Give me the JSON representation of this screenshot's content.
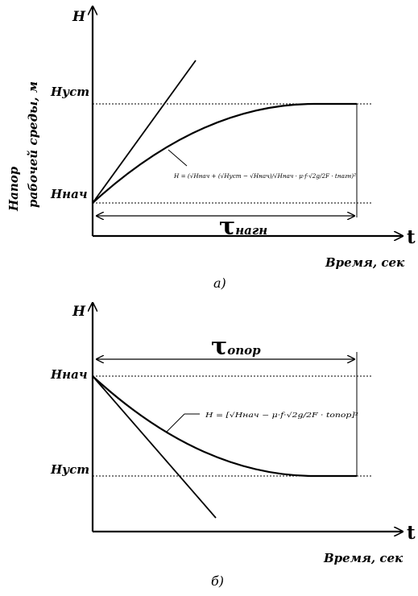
{
  "diagram_a": {
    "y_axis_letter": "H",
    "x_axis_letter": "t",
    "h_ust": "Hуст",
    "h_nach": "Hнач",
    "y_axis_title_line1": "Напор",
    "y_axis_title_line2": "рабочей среды, м",
    "tau_symbol": "τ",
    "tau_sub": "нагн",
    "x_axis_title": "Время, сек",
    "formula": "H = (√Hнач + (√Hуст − √Hнач)/√Hнач · μ·f·√2g/2F · tнагн)²",
    "caption": "а)"
  },
  "diagram_b": {
    "y_axis_letter": "H",
    "x_axis_letter": "t",
    "h_nach": "Hнач",
    "h_ust": "Hуст",
    "tau_symbol": "τ",
    "tau_sub": "опор",
    "x_axis_title": "Время, сек",
    "formula": "H = [√Hнач − μ·f·√2g/2F · tопор]²",
    "caption": "б)"
  }
}
